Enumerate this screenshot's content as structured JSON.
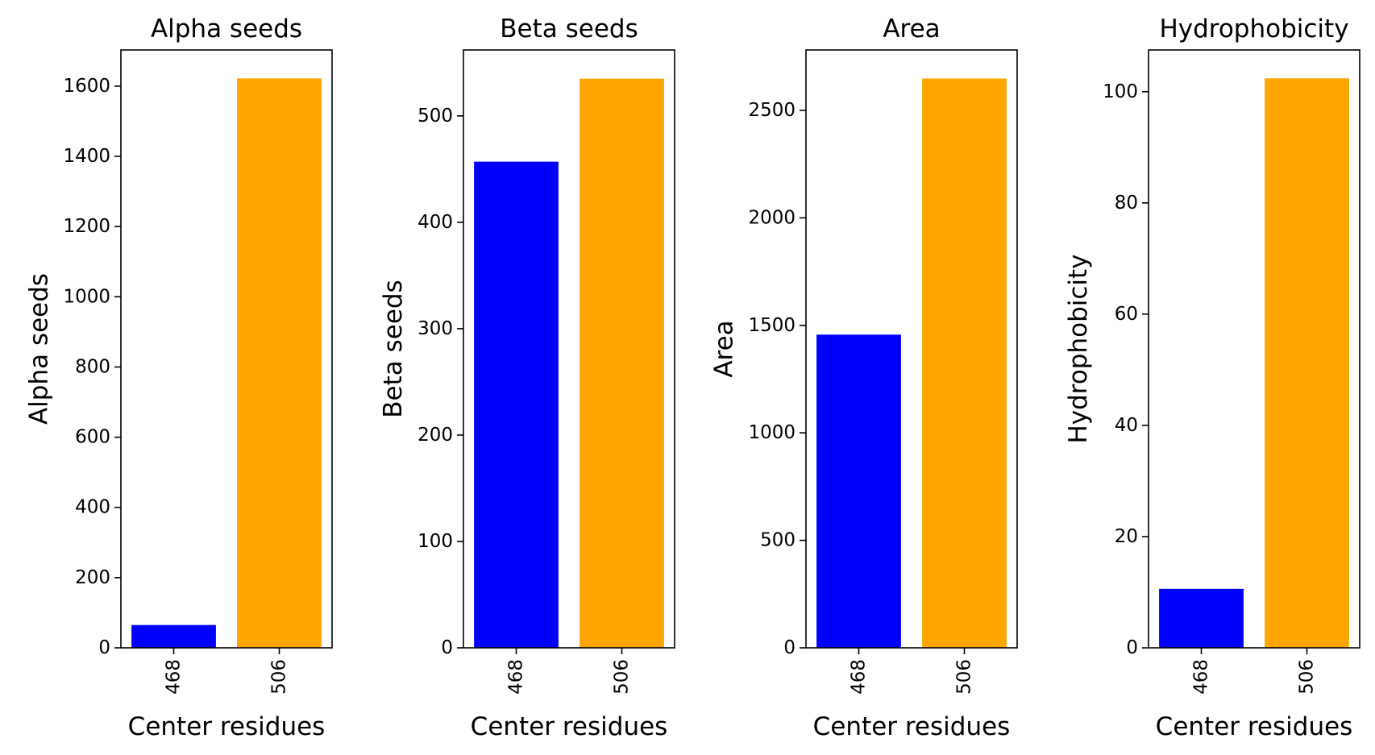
{
  "chart_data": [
    {
      "type": "bar",
      "title": "Alpha seeds",
      "xlabel": "Center residues",
      "ylabel": "Alpha seeds",
      "categories": [
        "468",
        "506"
      ],
      "values": [
        65,
        1622
      ],
      "colors": [
        "#0000ff",
        "#ffa500"
      ],
      "ylim": [
        0,
        1703
      ],
      "yticks": [
        0,
        200,
        400,
        600,
        800,
        1000,
        1200,
        1400,
        1600
      ],
      "grid": false
    },
    {
      "type": "bar",
      "title": "Beta seeds",
      "xlabel": "Center residues",
      "ylabel": "Beta seeds",
      "categories": [
        "468",
        "506"
      ],
      "values": [
        457,
        535
      ],
      "colors": [
        "#0000ff",
        "#ffa500"
      ],
      "ylim": [
        0,
        562
      ],
      "yticks": [
        0,
        100,
        200,
        300,
        400,
        500
      ],
      "grid": false
    },
    {
      "type": "bar",
      "title": "Area",
      "xlabel": "Center residues",
      "ylabel": "Area",
      "categories": [
        "468",
        "506"
      ],
      "values": [
        1457,
        2648
      ],
      "colors": [
        "#0000ff",
        "#ffa500"
      ],
      "ylim": [
        0,
        2781
      ],
      "yticks": [
        0,
        500,
        1000,
        1500,
        2000,
        2500
      ],
      "grid": false
    },
    {
      "type": "bar",
      "title": "Hydrophobicity",
      "xlabel": "Center residues",
      "ylabel": "Hydrophobicity",
      "categories": [
        "468",
        "506"
      ],
      "values": [
        10.6,
        102.4
      ],
      "colors": [
        "#0000ff",
        "#ffa500"
      ],
      "ylim": [
        0,
        107.5
      ],
      "yticks": [
        0,
        20,
        40,
        60,
        80,
        100
      ],
      "grid": false
    }
  ]
}
